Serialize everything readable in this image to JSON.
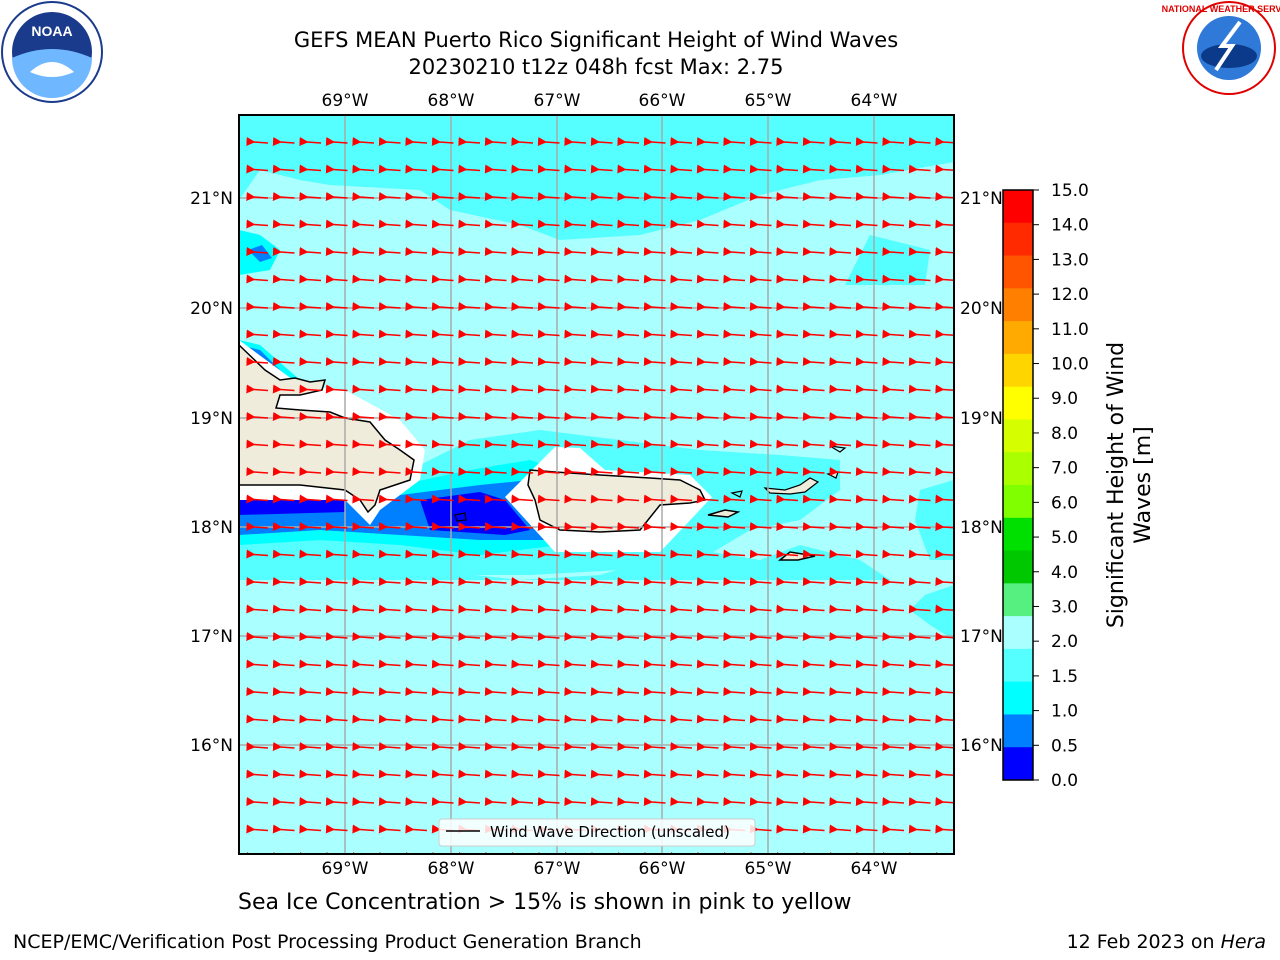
{
  "title": {
    "line1": "GEFS MEAN Puerto Rico Significant Height of Wind Waves",
    "line2": "20230210 t12z 048h fcst   Max: 2.75"
  },
  "map": {
    "lon_labels": [
      "69°W",
      "68°W",
      "67°W",
      "66°W",
      "65°W",
      "64°W"
    ],
    "lat_labels": [
      "21°N",
      "20°N",
      "19°N",
      "18°N",
      "17°N",
      "16°N"
    ],
    "legend_label": "Wind Wave Direction (unscaled)"
  },
  "colorbar": {
    "label_line1": "Significant Height of Wind",
    "label_line2": "Waves [m]",
    "ticks": [
      "15.0",
      "14.0",
      "13.0",
      "12.0",
      "11.0",
      "10.0",
      "9.0",
      "8.0",
      "7.0",
      "6.0",
      "5.0",
      "4.0",
      "3.0",
      "2.0",
      "1.5",
      "1.0",
      "0.5",
      "0.0"
    ],
    "colors": [
      "#ff0000",
      "#ff2a00",
      "#ff5500",
      "#ff8000",
      "#ffaa00",
      "#ffd500",
      "#ffff00",
      "#d5ff00",
      "#aaff00",
      "#80ff00",
      "#00e000",
      "#00c800",
      "#55f080",
      "#aaffff",
      "#55ffff",
      "#00ffff",
      "#0080ff",
      "#0000ff"
    ]
  },
  "subtitle": "Sea Ice Concentration > 15% is shown in pink to yellow",
  "footer": {
    "left": "NCEP/EMC/Verification Post Processing Product Generation Branch",
    "right_prefix": "12 Feb 2023 on ",
    "right_italic": "Hera"
  },
  "logos": {
    "noaa_text": "NOAA",
    "nws_text": "NATIONAL WEATHER SERVICE"
  }
}
